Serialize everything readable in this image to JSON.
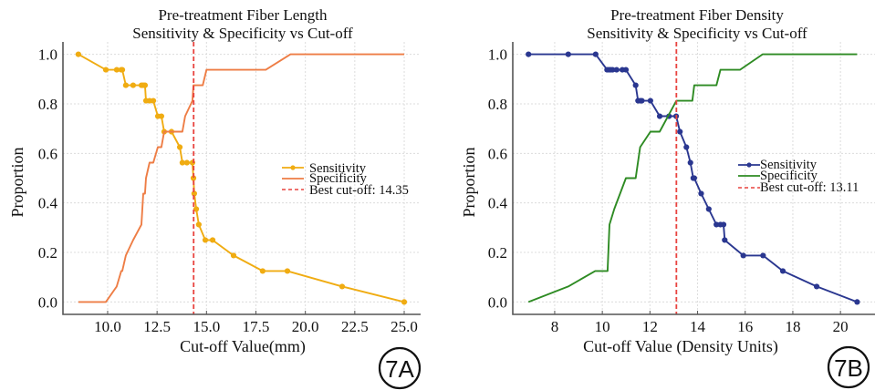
{
  "chart_data": [
    {
      "type": "line",
      "title": "Pre-treatment Fiber Length",
      "subtitle": "Sensitivity & Specificity vs Cut-off",
      "xlabel": "Cut-off Value(mm)",
      "ylabel": "Proportion",
      "xlim": [
        7.74,
        25.83
      ],
      "ylim": [
        -0.05,
        1.05
      ],
      "xticks": [
        10.0,
        12.5,
        15.0,
        17.5,
        20.0,
        22.5,
        25.0
      ],
      "xtick_labels": [
        "10.0",
        "12.5",
        "15.0",
        "17.5",
        "20.0",
        "22.5",
        "25.0"
      ],
      "yticks": [
        0.0,
        0.2,
        0.4,
        0.6,
        0.8,
        1.0
      ],
      "ytick_labels": [
        "0.0",
        "0.2",
        "0.4",
        "0.6",
        "0.8",
        "1.0"
      ],
      "grid": true,
      "legend_position": "center-right",
      "panel_label": "7A",
      "best_cutoff": 14.35,
      "series": [
        {
          "name": "Sensitivity",
          "color": "#f0ac12",
          "markers": true,
          "x": [
            8.52,
            9.91,
            10.46,
            10.69,
            10.74,
            10.92,
            11.29,
            11.71,
            11.8,
            11.89,
            11.94,
            12.12,
            12.31,
            12.54,
            12.72,
            12.86,
            13.23,
            13.65,
            13.78,
            14.01,
            14.29,
            14.34,
            14.38,
            14.48,
            14.61,
            14.94,
            15.31,
            16.37,
            17.84,
            19.09,
            21.86,
            25.0
          ],
          "y": [
            1.0,
            0.9375,
            0.9375,
            0.9375,
            0.9375,
            0.875,
            0.875,
            0.875,
            0.875,
            0.875,
            0.8125,
            0.8125,
            0.8125,
            0.75,
            0.75,
            0.6875,
            0.6875,
            0.625,
            0.5625,
            0.5625,
            0.5625,
            0.5,
            0.4375,
            0.375,
            0.3125,
            0.25,
            0.25,
            0.1875,
            0.125,
            0.125,
            0.0625,
            0.0
          ]
        },
        {
          "name": "Specificity",
          "color": "#ee7d45",
          "markers": false,
          "x": [
            8.52,
            9.91,
            10.46,
            10.69,
            10.74,
            10.92,
            11.29,
            11.71,
            11.8,
            11.89,
            11.94,
            12.12,
            12.31,
            12.54,
            12.72,
            12.86,
            13.23,
            13.78,
            13.92,
            14.29,
            14.34,
            14.81,
            15.0,
            18.0,
            19.25,
            25.0
          ],
          "y": [
            0.0,
            0.0,
            0.0625,
            0.125,
            0.125,
            0.1875,
            0.25,
            0.3125,
            0.4375,
            0.4375,
            0.5,
            0.5625,
            0.5625,
            0.625,
            0.625,
            0.6875,
            0.6875,
            0.6875,
            0.75,
            0.8125,
            0.875,
            0.875,
            0.9375,
            0.9375,
            1.0,
            1.0
          ]
        },
        {
          "name": "Best cut-off: 14.35",
          "color": "#e8433f",
          "style": "dashed",
          "vertical_x": 14.35
        }
      ]
    },
    {
      "type": "line",
      "title": "Pre-treatment Fiber Density",
      "subtitle": "Sensitivity & Specificity vs Cut-off",
      "xlabel": "Cut-off Value (Density Units)",
      "ylabel": "Proportion",
      "xlim": [
        6.24,
        21.45
      ],
      "ylim": [
        -0.05,
        1.05
      ],
      "xticks": [
        8,
        10,
        12,
        14,
        16,
        18,
        20
      ],
      "xtick_labels": [
        "8",
        "10",
        "12",
        "14",
        "16",
        "18",
        "20"
      ],
      "yticks": [
        0.0,
        0.2,
        0.4,
        0.6,
        0.8,
        1.0
      ],
      "ytick_labels": [
        "0.0",
        "0.2",
        "0.4",
        "0.6",
        "0.8",
        "1.0"
      ],
      "grid": true,
      "legend_position": "center-right",
      "panel_label": "7B",
      "best_cutoff": 13.11,
      "series": [
        {
          "name": "Sensitivity",
          "color": "#2a3790",
          "markers": true,
          "x": [
            6.9,
            8.57,
            9.72,
            10.2,
            10.28,
            10.35,
            10.43,
            10.6,
            10.84,
            10.99,
            11.4,
            11.5,
            11.59,
            11.66,
            12.02,
            12.41,
            12.8,
            13.1,
            13.26,
            13.53,
            13.7,
            13.82,
            13.86,
            14.15,
            14.47,
            14.79,
            14.96,
            15.09,
            15.14,
            15.92,
            16.75,
            17.58,
            19.0,
            20.7
          ],
          "y": [
            1.0,
            1.0,
            1.0,
            0.9375,
            0.9375,
            0.9375,
            0.9375,
            0.9375,
            0.9375,
            0.9375,
            0.875,
            0.8125,
            0.8125,
            0.8125,
            0.8125,
            0.75,
            0.75,
            0.75,
            0.6875,
            0.625,
            0.5625,
            0.5,
            0.5,
            0.4375,
            0.375,
            0.3125,
            0.3125,
            0.3125,
            0.25,
            0.1875,
            0.1875,
            0.125,
            0.0625,
            0.0
          ]
        },
        {
          "name": "Specificity",
          "color": "#2e8b23",
          "markers": false,
          "x": [
            6.9,
            8.57,
            9.7,
            10.22,
            10.3,
            10.5,
            10.99,
            11.4,
            11.59,
            12.02,
            12.41,
            13.11,
            13.78,
            13.86,
            14.79,
            14.96,
            15.78,
            16.73,
            20.7
          ],
          "y": [
            0.0,
            0.0625,
            0.125,
            0.125,
            0.3125,
            0.375,
            0.5,
            0.5,
            0.625,
            0.6875,
            0.6875,
            0.8125,
            0.8125,
            0.875,
            0.875,
            0.9375,
            0.9375,
            1.0,
            1.0
          ]
        },
        {
          "name": "Best cut-off: 13.11",
          "color": "#e8433f",
          "style": "dashed",
          "vertical_x": 13.11
        }
      ]
    }
  ]
}
